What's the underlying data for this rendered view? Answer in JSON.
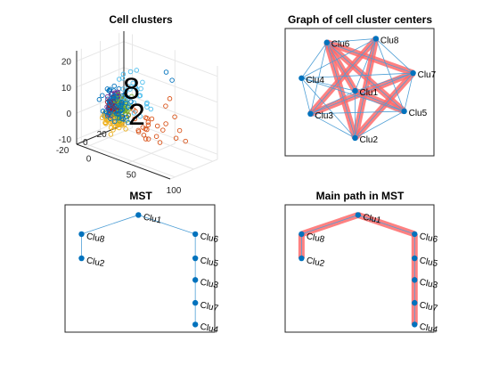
{
  "colors": {
    "node": "#0072BD",
    "thin_edge": "#4F9FD6",
    "thick_edge": "#FF6B6B",
    "axis": "#262626",
    "grid": "#E6E6E6",
    "scatter": [
      "#0072BD",
      "#D95319",
      "#EDB120",
      "#7E2F8E",
      "#77AC30",
      "#4DBEEE",
      "#A2142F",
      "#0072BD"
    ]
  },
  "chart_data": [
    {
      "id": "cell-clusters",
      "type": "scatter",
      "title": "Cell clusters",
      "projection": "3d",
      "x_ticks": [
        "0",
        "50",
        "100"
      ],
      "y_ticks": [
        "20",
        "0",
        "-20"
      ],
      "z_ticks": [
        "20",
        "10",
        "0",
        "-10"
      ],
      "xlim": [
        -10,
        100
      ],
      "ylim": [
        -25,
        25
      ],
      "zlim": [
        -12,
        24
      ],
      "grid": true,
      "cluster_labels": [
        "8",
        "2"
      ],
      "series": [
        {
          "center": [
            5,
            0,
            2
          ],
          "spread": [
            8,
            8,
            5
          ],
          "count": 60
        },
        {
          "center": [
            40,
            5,
            -2
          ],
          "spread": [
            25,
            8,
            6
          ],
          "count": 22
        },
        {
          "center": [
            12,
            -5,
            -3
          ],
          "spread": [
            9,
            9,
            4
          ],
          "count": 60
        },
        {
          "center": [
            -2,
            8,
            -1
          ],
          "spread": [
            6,
            7,
            4
          ],
          "count": 55
        },
        {
          "center": [
            8,
            4,
            0
          ],
          "spread": [
            8,
            8,
            4
          ],
          "count": 70
        },
        {
          "center": [
            15,
            10,
            6
          ],
          "spread": [
            20,
            8,
            8
          ],
          "count": 30
        },
        {
          "center": [
            6,
            -2,
            1
          ],
          "spread": [
            5,
            5,
            3
          ],
          "count": 15
        },
        {
          "center": [
            10,
            0,
            1
          ],
          "spread": [
            10,
            10,
            5
          ],
          "count": 40
        }
      ]
    },
    {
      "id": "graph-centers",
      "type": "graph",
      "title": "Graph of cell cluster centers",
      "nodes": [
        {
          "label": "Clu1",
          "x": 0.47,
          "y": 0.51
        },
        {
          "label": "Clu2",
          "x": 0.47,
          "y": 0.14
        },
        {
          "label": "Clu3",
          "x": 0.17,
          "y": 0.33
        },
        {
          "label": "Clu4",
          "x": 0.11,
          "y": 0.61
        },
        {
          "label": "Clu5",
          "x": 0.8,
          "y": 0.35
        },
        {
          "label": "Clu6",
          "x": 0.28,
          "y": 0.89
        },
        {
          "label": "Clu7",
          "x": 0.86,
          "y": 0.65
        },
        {
          "label": "Clu8",
          "x": 0.61,
          "y": 0.92
        }
      ],
      "thin_edges": "complete",
      "thick_edges": [
        [
          "Clu6",
          "Clu5"
        ],
        [
          "Clu6",
          "Clu7"
        ],
        [
          "Clu8",
          "Clu3"
        ],
        [
          "Clu8",
          "Clu2"
        ],
        [
          "Clu3",
          "Clu7"
        ],
        [
          "Clu2",
          "Clu7"
        ],
        [
          "Clu6",
          "Clu2"
        ],
        [
          "Clu1",
          "Clu5"
        ],
        [
          "Clu1",
          "Clu6"
        ]
      ]
    },
    {
      "id": "mst",
      "type": "graph",
      "title": "MST",
      "nodes": [
        {
          "label": "Clu1",
          "x": 0.49,
          "y": 0.92
        },
        {
          "label": "Clu8",
          "x": 0.11,
          "y": 0.77
        },
        {
          "label": "Clu2",
          "x": 0.11,
          "y": 0.58
        },
        {
          "label": "Clu6",
          "x": 0.87,
          "y": 0.77
        },
        {
          "label": "Clu5",
          "x": 0.87,
          "y": 0.58
        },
        {
          "label": "Clu3",
          "x": 0.87,
          "y": 0.41
        },
        {
          "label": "Clu7",
          "x": 0.87,
          "y": 0.23
        },
        {
          "label": "Clu4",
          "x": 0.87,
          "y": 0.06
        }
      ],
      "edges": [
        [
          "Clu8",
          "Clu2"
        ],
        [
          "Clu8",
          "Clu1"
        ],
        [
          "Clu1",
          "Clu6"
        ],
        [
          "Clu6",
          "Clu5"
        ],
        [
          "Clu5",
          "Clu3"
        ],
        [
          "Clu3",
          "Clu7"
        ],
        [
          "Clu7",
          "Clu4"
        ]
      ],
      "thick_edges": []
    },
    {
      "id": "main-path",
      "type": "graph",
      "title": "Main path in MST",
      "nodes": [
        {
          "label": "Clu1",
          "x": 0.49,
          "y": 0.92
        },
        {
          "label": "Clu8",
          "x": 0.11,
          "y": 0.77
        },
        {
          "label": "Clu2",
          "x": 0.11,
          "y": 0.58
        },
        {
          "label": "Clu6",
          "x": 0.87,
          "y": 0.77
        },
        {
          "label": "Clu5",
          "x": 0.87,
          "y": 0.58
        },
        {
          "label": "Clu3",
          "x": 0.87,
          "y": 0.41
        },
        {
          "label": "Clu7",
          "x": 0.87,
          "y": 0.23
        },
        {
          "label": "Clu4",
          "x": 0.87,
          "y": 0.06
        }
      ],
      "edges": [
        [
          "Clu8",
          "Clu2"
        ],
        [
          "Clu8",
          "Clu1"
        ],
        [
          "Clu1",
          "Clu6"
        ],
        [
          "Clu6",
          "Clu5"
        ],
        [
          "Clu5",
          "Clu3"
        ],
        [
          "Clu3",
          "Clu7"
        ],
        [
          "Clu7",
          "Clu4"
        ]
      ],
      "thick_edges": [
        [
          "Clu2",
          "Clu8"
        ],
        [
          "Clu8",
          "Clu1"
        ],
        [
          "Clu1",
          "Clu6"
        ],
        [
          "Clu6",
          "Clu5"
        ],
        [
          "Clu5",
          "Clu3"
        ],
        [
          "Clu3",
          "Clu7"
        ],
        [
          "Clu7",
          "Clu4"
        ]
      ]
    }
  ]
}
